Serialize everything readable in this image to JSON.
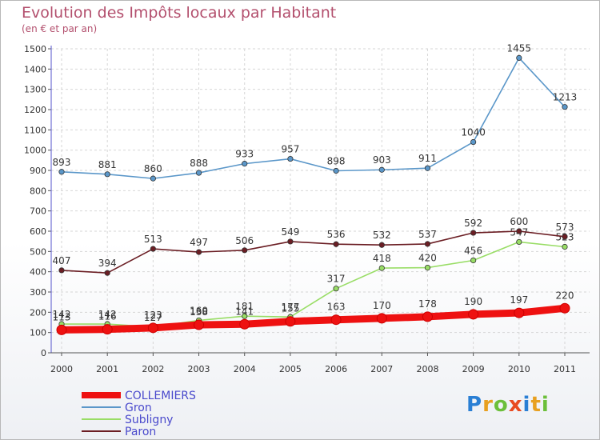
{
  "title": "Evolution des Impôts locaux par Habitant",
  "subtitle": "(en € et par an)",
  "logo": {
    "text": "Proxiti",
    "colors": [
      "#2a7fd4",
      "#e8a020",
      "#6cbf3a",
      "#e84a20",
      "#2a7fd4",
      "#e8a020",
      "#6cbf3a"
    ]
  },
  "chart_data": {
    "type": "line",
    "title": "Evolution des Impôts locaux par Habitant",
    "subtitle": "(en € et par an)",
    "xlabel": "",
    "ylabel": "",
    "x": [
      "2000",
      "2001",
      "2002",
      "2003",
      "2004",
      "2005",
      "2006",
      "2007",
      "2008",
      "2009",
      "2010",
      "2011"
    ],
    "ylim": [
      0,
      1500
    ],
    "yticks": [
      0,
      100,
      200,
      300,
      400,
      500,
      600,
      700,
      800,
      900,
      1000,
      1100,
      1200,
      1300,
      1400,
      1500
    ],
    "grid": true,
    "legend_position": "bottom-left",
    "series": [
      {
        "name": "Gron",
        "color": "#5b97c9",
        "values": [
          893,
          881,
          860,
          888,
          933,
          957,
          898,
          903,
          911,
          1040,
          1455,
          1213
        ]
      },
      {
        "name": "Subligny",
        "color": "#99dd66",
        "values": [
          142,
          142,
          127,
          160,
          181,
          177,
          317,
          418,
          420,
          456,
          547,
          523
        ]
      },
      {
        "name": "Paron",
        "color": "#6b1e24",
        "values": [
          407,
          394,
          513,
          497,
          506,
          549,
          536,
          532,
          537,
          592,
          600,
          573
        ]
      },
      {
        "name": "COLLEMIERS",
        "color": "#ee1111",
        "values": [
          113,
          116,
          123,
          138,
          141,
          155,
          163,
          170,
          178,
          190,
          197,
          220
        ]
      }
    ],
    "legend": [
      {
        "name": "COLLEMIERS",
        "color": "#ee1111"
      },
      {
        "name": "Gron",
        "color": "#5b97c9"
      },
      {
        "name": "Subligny",
        "color": "#99dd66"
      },
      {
        "name": "Paron",
        "color": "#6b1e24"
      }
    ]
  }
}
